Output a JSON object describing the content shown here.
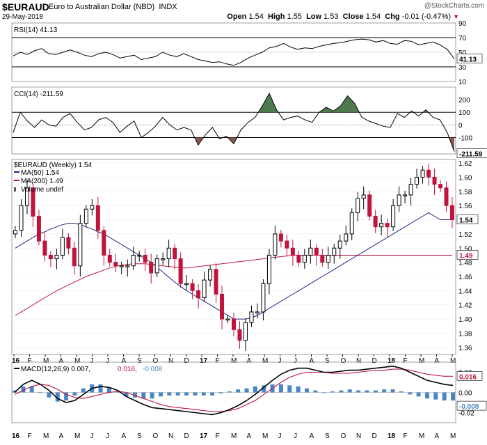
{
  "header": {
    "symbol": "$EURAUD",
    "description": "Euro to Australian Dollar (NBD)",
    "exchange": "INDX",
    "date": "29-May-2018",
    "watermark": "@StockCharts.com",
    "open_label": "Open",
    "open": "1.54",
    "high_label": "High",
    "high": "1.55",
    "low_label": "Low",
    "low": "1.53",
    "close_label": "Close",
    "close": "1.54",
    "chg_label": "Chg",
    "chg": "-0.01 (-0.47%)"
  },
  "colors": {
    "up": "#000000",
    "down": "#c0143c",
    "ma50": "#1a237e",
    "ma200": "#c0143c",
    "cci_fill": "#4e7a4e",
    "cci_neg_fill": "#8b5a55",
    "hist": "#4a86c5"
  },
  "chart_data": [
    {
      "type": "line",
      "title": "RSI(14) 41.13",
      "current": "41.13",
      "ylim": [
        10,
        90
      ],
      "ticks": [
        90,
        70,
        50,
        30,
        10
      ],
      "x": [
        0,
        2,
        4,
        6,
        8,
        10,
        12,
        14,
        16,
        18,
        20,
        22,
        24,
        26,
        28,
        30,
        32,
        34,
        36,
        38,
        40,
        42,
        44,
        46,
        48,
        50,
        52,
        54,
        56,
        58,
        60,
        62,
        64,
        66,
        68,
        70,
        72,
        74,
        76,
        78,
        80,
        82,
        84,
        86,
        88,
        90,
        92,
        94,
        96,
        98,
        100,
        102,
        104,
        106,
        108,
        110,
        112,
        114,
        116,
        118,
        120,
        122,
        124
      ],
      "values": [
        45,
        50,
        47,
        52,
        55,
        48,
        47,
        50,
        53,
        50,
        46,
        44,
        48,
        50,
        47,
        42,
        44,
        46,
        40,
        42,
        44,
        50,
        46,
        44,
        48,
        44,
        40,
        38,
        36,
        37,
        34,
        32,
        36,
        42,
        46,
        50,
        56,
        58,
        62,
        57,
        54,
        56,
        55,
        58,
        60,
        62,
        63,
        65,
        67,
        68,
        67,
        64,
        66,
        62,
        61,
        66,
        65,
        60,
        62,
        64,
        60,
        54,
        41
      ]
    },
    {
      "type": "area",
      "title": "CCI(14) -211.59",
      "current": "-211.59",
      "ylim": [
        -230,
        300
      ],
      "ticks": [
        200,
        100,
        0,
        -100
      ],
      "x": [
        0,
        2,
        4,
        6,
        8,
        10,
        12,
        14,
        16,
        18,
        20,
        22,
        24,
        26,
        28,
        30,
        32,
        34,
        36,
        38,
        40,
        42,
        44,
        46,
        48,
        50,
        52,
        54,
        56,
        58,
        60,
        62,
        64,
        66,
        68,
        70,
        72,
        74,
        76,
        78,
        80,
        82,
        84,
        86,
        88,
        90,
        92,
        94,
        96,
        98,
        100,
        102,
        104,
        106,
        108,
        110,
        112,
        114,
        116,
        118,
        120,
        122,
        124
      ],
      "values": [
        -60,
        100,
        30,
        -20,
        40,
        0,
        -10,
        60,
        90,
        20,
        -40,
        -20,
        40,
        60,
        20,
        -60,
        -10,
        30,
        -100,
        -60,
        -10,
        60,
        0,
        -40,
        -20,
        -40,
        -160,
        -80,
        -20,
        -110,
        -90,
        -150,
        -40,
        20,
        60,
        150,
        250,
        120,
        40,
        60,
        70,
        40,
        20,
        100,
        140,
        110,
        150,
        230,
        170,
        60,
        30,
        10,
        -10,
        -20,
        90,
        60,
        110,
        70,
        120,
        60,
        40,
        -60,
        -211.59
      ]
    },
    {
      "type": "line",
      "title": "$EURAUD (Weekly) 1.54",
      "legend": [
        "MA(50) 1.54",
        "MA(200) 1.49",
        "Volume undef"
      ],
      "current": "1.54",
      "ma200_current": "1.49",
      "ylim": [
        1.35,
        1.625
      ],
      "ticks": [
        1.62,
        1.6,
        1.58,
        1.56,
        1.54,
        1.52,
        1.5,
        1.48,
        1.46,
        1.44,
        1.42,
        1.4,
        1.38,
        1.36
      ],
      "xlabels": [
        "16",
        "F",
        "M",
        "A",
        "M",
        "J",
        "J",
        "A",
        "S",
        "O",
        "N",
        "D",
        "17",
        "F",
        "M",
        "A",
        "M",
        "J",
        "J",
        "A",
        "S",
        "O",
        "N",
        "D",
        "18",
        "F",
        "M",
        "A",
        "M"
      ],
      "close": [
        1.525,
        1.56,
        1.585,
        1.545,
        1.51,
        1.49,
        1.485,
        1.49,
        1.515,
        1.5,
        1.475,
        1.535,
        1.555,
        1.56,
        1.525,
        1.49,
        1.48,
        1.475,
        1.475,
        1.475,
        1.49,
        1.49,
        1.48,
        1.465,
        1.485,
        1.485,
        1.5,
        1.485,
        1.45,
        1.45,
        1.44,
        1.43,
        1.455,
        1.47,
        1.435,
        1.4,
        1.4,
        1.385,
        1.37,
        1.395,
        1.41,
        1.41,
        1.45,
        1.49,
        1.52,
        1.51,
        1.5,
        1.49,
        1.48,
        1.49,
        1.5,
        1.49,
        1.48,
        1.49,
        1.5,
        1.51,
        1.52,
        1.55,
        1.57,
        1.575,
        1.545,
        1.53,
        1.535,
        1.53,
        1.56,
        1.575,
        1.575,
        1.59,
        1.6,
        1.61,
        1.6,
        1.59,
        1.585,
        1.56,
        1.54
      ],
      "ma50": [
        1.5,
        1.505,
        1.51,
        1.515,
        1.52,
        1.523,
        1.527,
        1.53,
        1.533,
        1.535,
        1.535,
        1.533,
        1.53,
        1.527,
        1.523,
        1.52,
        1.515,
        1.51,
        1.505,
        1.5,
        1.495,
        1.49,
        1.485,
        1.48,
        1.473,
        1.466,
        1.459,
        1.452,
        1.446,
        1.44,
        1.435,
        1.43,
        1.425,
        1.42,
        1.415,
        1.41,
        1.405,
        1.4,
        1.4,
        1.4,
        1.402,
        1.405,
        1.41,
        1.415,
        1.42,
        1.425,
        1.43,
        1.435,
        1.44,
        1.445,
        1.45,
        1.455,
        1.46,
        1.465,
        1.47,
        1.475,
        1.48,
        1.485,
        1.49,
        1.495,
        1.5,
        1.505,
        1.51,
        1.515,
        1.52,
        1.525,
        1.53,
        1.535,
        1.54,
        1.545,
        1.55,
        1.545,
        1.54,
        1.54,
        1.54
      ],
      "ma200": [
        1.405,
        1.41,
        1.415,
        1.42,
        1.425,
        1.43,
        1.435,
        1.44,
        1.444,
        1.448,
        1.452,
        1.456,
        1.46,
        1.463,
        1.466,
        1.469,
        1.472,
        1.474,
        1.476,
        1.477,
        1.478,
        1.478,
        1.478,
        1.477,
        1.476,
        1.475,
        1.474,
        1.473,
        1.472,
        1.472,
        1.473,
        1.474,
        1.475,
        1.476,
        1.477,
        1.478,
        1.479,
        1.48,
        1.481,
        1.482,
        1.483,
        1.484,
        1.485,
        1.486,
        1.487,
        1.488,
        1.489,
        1.49,
        1.49,
        1.49,
        1.49,
        1.49,
        1.49,
        1.49,
        1.49,
        1.49,
        1.49,
        1.49,
        1.49,
        1.49,
        1.49,
        1.49,
        1.49,
        1.49,
        1.49,
        1.49,
        1.49,
        1.49,
        1.49,
        1.49,
        1.49,
        1.49,
        1.49,
        1.49,
        1.49
      ]
    },
    {
      "type": "line",
      "title": "MACD(12,26,9) 0.007, 0.016, -0.008",
      "legend_macd": "MACD(12,26,9) 0.007",
      "legend_signal": "0.016",
      "legend_hist": "-0.008",
      "current_signal": "0.016",
      "current_macd": "0.007",
      "current_hist": "-0.008",
      "ylim": [
        -0.03,
        0.03
      ],
      "ticks": [
        0.02,
        0.0,
        -0.02
      ],
      "macd": [
        0.0,
        0.008,
        0.012,
        0.008,
        0.002,
        -0.006,
        -0.01,
        -0.008,
        -0.002,
        0.004,
        0.006,
        0.005,
        0.002,
        -0.004,
        -0.008,
        -0.012,
        -0.015,
        -0.016,
        -0.017,
        -0.018,
        -0.019,
        -0.02,
        -0.021,
        -0.022,
        -0.02,
        -0.017,
        -0.013,
        -0.008,
        -0.002,
        0.005,
        0.012,
        0.018,
        0.022,
        0.024,
        0.024,
        0.022,
        0.02,
        0.02,
        0.021,
        0.022,
        0.022,
        0.023,
        0.024,
        0.025,
        0.026,
        0.024,
        0.02,
        0.016,
        0.012,
        0.01,
        0.008,
        0.007
      ],
      "signal": [
        -0.002,
        0.002,
        0.006,
        0.008,
        0.007,
        0.003,
        -0.002,
        -0.005,
        -0.006,
        -0.004,
        -0.002,
        0.0,
        0.001,
        0.0,
        -0.003,
        -0.006,
        -0.009,
        -0.012,
        -0.014,
        -0.015,
        -0.016,
        -0.017,
        -0.018,
        -0.019,
        -0.019,
        -0.018,
        -0.016,
        -0.012,
        -0.008,
        -0.002,
        0.004,
        0.01,
        0.015,
        0.018,
        0.02,
        0.02,
        0.02,
        0.019,
        0.019,
        0.019,
        0.02,
        0.021,
        0.022,
        0.022,
        0.023,
        0.023,
        0.022,
        0.02,
        0.018,
        0.017,
        0.016,
        0.016
      ],
      "hist": [
        0.002,
        0.006,
        0.006,
        0.0,
        -0.005,
        -0.009,
        -0.008,
        -0.003,
        0.004,
        0.008,
        0.008,
        0.005,
        0.001,
        -0.004,
        -0.005,
        -0.006,
        -0.006,
        -0.004,
        -0.003,
        -0.003,
        -0.003,
        -0.003,
        -0.003,
        -0.003,
        -0.001,
        0.001,
        0.003,
        0.004,
        0.006,
        0.007,
        0.008,
        0.008,
        0.007,
        0.006,
        0.004,
        0.002,
        0.0,
        0.001,
        0.002,
        0.003,
        0.002,
        0.002,
        0.002,
        0.003,
        0.003,
        0.001,
        -0.002,
        -0.004,
        -0.006,
        -0.007,
        -0.008,
        -0.008
      ]
    }
  ]
}
